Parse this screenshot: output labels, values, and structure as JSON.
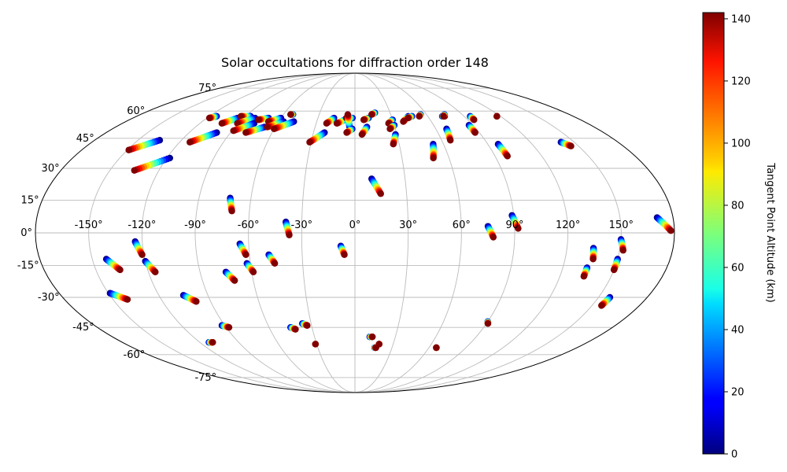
{
  "chart_data": {
    "type": "scatter",
    "projection": "mollweide",
    "title": "Solar occultations for diffraction order 148",
    "lon_tick_labels": [
      "-150°",
      "-120°",
      "-90°",
      "-60°",
      "-30°",
      "0°",
      "30°",
      "60°",
      "90°",
      "120°",
      "150°"
    ],
    "lat_tick_labels": [
      "75°",
      "60°",
      "45°",
      "30°",
      "15°",
      "0°",
      "-15°",
      "-30°",
      "-45°",
      "-60°",
      "-75°"
    ],
    "lon_ticks": [
      -150,
      -120,
      -90,
      -60,
      -30,
      0,
      30,
      60,
      90,
      120,
      150
    ],
    "lat_ticks": [
      75,
      60,
      45,
      30,
      15,
      0,
      -15,
      -30,
      -45,
      -60,
      -75
    ],
    "colorbar": {
      "label": "Tangent Point Altitude (km)",
      "range": [
        0,
        142
      ],
      "tick_values": [
        0,
        20,
        40,
        60,
        80,
        100,
        120,
        140
      ],
      "tick_labels": [
        "0",
        "20",
        "40",
        "60",
        "80",
        "100",
        "120",
        "140"
      ],
      "colormap": "jet"
    },
    "grid": true,
    "tracks": [
      {
        "lon0": -135,
        "lat0": 44,
        "lon1": -149,
        "lat1": 39
      },
      {
        "lon0": -114,
        "lat0": 57,
        "lon1": -118,
        "lat1": 56
      },
      {
        "lon0": -118,
        "lat0": 35,
        "lon1": -135,
        "lat1": 29
      },
      {
        "lon0": -100,
        "lat0": 48,
        "lon1": -113,
        "lat1": 43
      },
      {
        "lon0": -95,
        "lat0": 56,
        "lon1": -103,
        "lat1": 53
      },
      {
        "lon0": -86,
        "lat0": 57,
        "lon1": -94,
        "lat1": 57
      },
      {
        "lon0": -81,
        "lat0": 56,
        "lon1": -91,
        "lat1": 53
      },
      {
        "lon0": -78,
        "lat0": 53,
        "lon1": -89,
        "lat1": 49
      },
      {
        "lon0": -70,
        "lat0": 56,
        "lon1": -77,
        "lat1": 55
      },
      {
        "lon0": -68,
        "lat0": 51,
        "lon1": -79,
        "lat1": 48
      },
      {
        "lon0": -60,
        "lat0": 56,
        "lon1": -68,
        "lat1": 54
      },
      {
        "lon0": -56,
        "lat0": 54,
        "lon1": -66,
        "lat1": 51
      },
      {
        "lon0": -48,
        "lat0": 54,
        "lon1": -60,
        "lat1": 50
      },
      {
        "lon0": -52,
        "lat0": 58,
        "lon1": -54,
        "lat1": 58
      },
      {
        "lon0": -17,
        "lat0": 56,
        "lon1": -22,
        "lat1": 53
      },
      {
        "lon0": -22,
        "lat0": 48,
        "lon1": -31,
        "lat1": 43
      },
      {
        "lon0": -8,
        "lat0": 55,
        "lon1": -14,
        "lat1": 53
      },
      {
        "lon0": -2,
        "lat0": 56,
        "lon1": -7,
        "lat1": 56
      },
      {
        "lon0": -4,
        "lat0": 51,
        "lon1": -6,
        "lat1": 58
      },
      {
        "lon0": -2,
        "lat0": 50,
        "lon1": -6,
        "lat1": 48
      },
      {
        "lon0": 11,
        "lat0": 56,
        "lon1": 7,
        "lat1": 55
      },
      {
        "lon0": 9,
        "lat0": 51,
        "lon1": 5,
        "lat1": 47
      },
      {
        "lon0": 17,
        "lat0": 59,
        "lon1": 14,
        "lat1": 58
      },
      {
        "lon0": 30,
        "lat0": 55,
        "lon1": 26,
        "lat1": 53
      },
      {
        "lon0": 30,
        "lat0": 52,
        "lon1": 26,
        "lat1": 50
      },
      {
        "lon0": 29,
        "lat0": 47,
        "lon1": 26,
        "lat1": 42
      },
      {
        "lon0": 44,
        "lat0": 57,
        "lon1": 38,
        "lat1": 54
      },
      {
        "lon0": 47,
        "lat0": 57,
        "lon1": 43,
        "lat1": 56
      },
      {
        "lon0": 55,
        "lat0": 58,
        "lon1": 53,
        "lat1": 57
      },
      {
        "lon0": 53,
        "lat0": 42,
        "lon1": 50,
        "lat1": 35
      },
      {
        "lon0": 72,
        "lat0": 57,
        "lon1": 74,
        "lat1": 57
      },
      {
        "lon0": 75,
        "lat0": 58,
        "lon1": 73,
        "lat1": 57
      },
      {
        "lon0": 68,
        "lat0": 50,
        "lon1": 66,
        "lat1": 44
      },
      {
        "lon0": 87,
        "lat0": 52,
        "lon1": 87,
        "lat1": 48
      },
      {
        "lon0": 95,
        "lat0": 57,
        "lon1": 95,
        "lat1": 55
      },
      {
        "lon0": 97,
        "lat0": 42,
        "lon1": 98,
        "lat1": 36
      },
      {
        "lon0": 117,
        "lat0": 57,
        "lon1": 117,
        "lat1": 57
      },
      {
        "lon0": 141,
        "lat0": 43,
        "lon1": 145,
        "lat1": 41
      },
      {
        "lon0": 10,
        "lat0": 25,
        "lon1": 15,
        "lat1": 18
      },
      {
        "lon0": -72,
        "lat0": 16,
        "lon1": -70,
        "lat1": 10
      },
      {
        "lon0": -39,
        "lat0": 5,
        "lon1": -37,
        "lat1": -1
      },
      {
        "lon0": -124,
        "lat0": -4,
        "lon1": -121,
        "lat1": -10
      },
      {
        "lon0": -65,
        "lat0": -5,
        "lon1": -62,
        "lat1": -10
      },
      {
        "lon0": -49,
        "lat0": -10,
        "lon1": -46,
        "lat1": -14
      },
      {
        "lon0": -8,
        "lat0": -6,
        "lon1": -6,
        "lat1": -10
      },
      {
        "lon0": 75,
        "lat0": 3,
        "lon1": 78,
        "lat1": -2
      },
      {
        "lon0": 89,
        "lat0": 8,
        "lon1": 92,
        "lat1": 2
      },
      {
        "lon0": 171,
        "lat0": 7,
        "lon1": 178,
        "lat1": 1
      },
      {
        "lon0": -142,
        "lat0": -12,
        "lon1": -136,
        "lat1": -17
      },
      {
        "lon0": -120,
        "lat0": -13,
        "lon1": -116,
        "lat1": -18
      },
      {
        "lon0": -75,
        "lat0": -18,
        "lon1": -71,
        "lat1": -22
      },
      {
        "lon0": -62,
        "lat0": -14,
        "lon1": -59,
        "lat1": -18
      },
      {
        "lon0": -149,
        "lat0": -28,
        "lon1": -141,
        "lat1": -31
      },
      {
        "lon0": -105,
        "lat0": -29,
        "lon1": -99,
        "lat1": -32
      },
      {
        "lon0": 135,
        "lat0": -7,
        "lon1": 136,
        "lat1": -12
      },
      {
        "lon0": 134,
        "lat0": -16,
        "lon1": 134,
        "lat1": -20
      },
      {
        "lon0": 150,
        "lat0": -3,
        "lon1": 152,
        "lat1": -8
      },
      {
        "lon0": 150,
        "lat0": -12,
        "lon1": 150,
        "lat1": -17
      },
      {
        "lon0": 157,
        "lat0": -30,
        "lon1": 156,
        "lat1": -34
      },
      {
        "lon0": -92,
        "lat0": -44,
        "lon1": -88,
        "lat1": -45
      },
      {
        "lon0": -45,
        "lat0": -45,
        "lon1": -42,
        "lat1": -46
      },
      {
        "lon0": -36,
        "lat0": -43,
        "lon1": -33,
        "lat1": -44
      },
      {
        "lon0": 90,
        "lat0": -42,
        "lon1": 91,
        "lat1": -43
      },
      {
        "lon0": -113,
        "lat0": -53,
        "lon1": -110,
        "lat1": -53
      },
      {
        "lon0": 11,
        "lat0": -50,
        "lon1": 13,
        "lat1": -50
      },
      {
        "lon0": -31,
        "lat0": -54,
        "lon1": -31,
        "lat1": -54
      },
      {
        "lon0": 19,
        "lat0": -54,
        "lon1": 19,
        "lat1": -54
      },
      {
        "lon0": 16,
        "lat0": -56,
        "lon1": 17,
        "lat1": -56
      },
      {
        "lon0": 66,
        "lat0": -56,
        "lon1": 66,
        "lat1": -56
      }
    ]
  }
}
